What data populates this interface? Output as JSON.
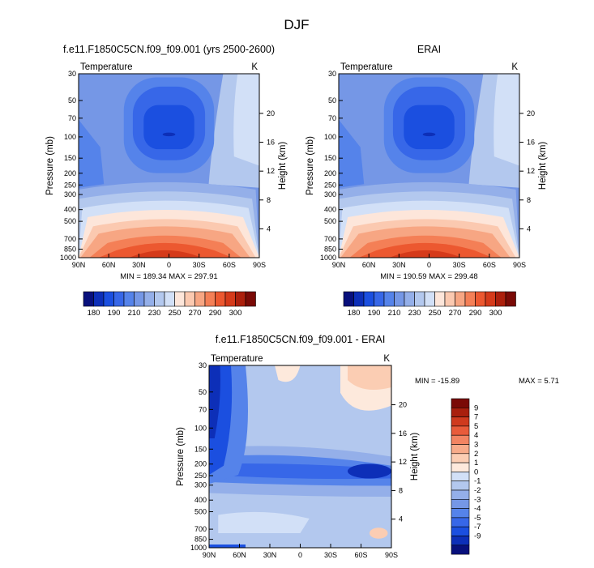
{
  "figure_title": "DJF",
  "colors": {
    "upper_palette": [
      "#08107c",
      "#0d2fb8",
      "#1b4fe0",
      "#3767e8",
      "#5583ea",
      "#7597e6",
      "#94afe9",
      "#b3c8ee",
      "#d2e0f7",
      "#fde6da",
      "#fbc9b0",
      "#f7a683",
      "#f47f56",
      "#ec5830",
      "#d53a1a",
      "#ac1f0c",
      "#7a0a06"
    ],
    "diff_palette": [
      "#08107c",
      "#0d2fb8",
      "#1b4fe0",
      "#3767e8",
      "#5583ea",
      "#7597e6",
      "#94afe9",
      "#b3c8ee",
      "#d2e0f7",
      "#fde9dc",
      "#fbcdb3",
      "#f7ab8a",
      "#f28462",
      "#e85b3a",
      "#cf3a1e",
      "#a91f0d",
      "#7a0a06"
    ]
  },
  "chart_data": [
    {
      "type": "contour",
      "title": "f.e11.F1850C5CN.f09_f09.001 (yrs 2500-2600)",
      "left_label": "Temperature",
      "right_label": "K",
      "xlabel": "",
      "ylabel": "Pressure (mb)",
      "ylabel_right": "Height (km)",
      "x_ticks": [
        "90N",
        "60N",
        "30N",
        "0",
        "30S",
        "60S",
        "90S"
      ],
      "y_ticks": [
        "30",
        "50",
        "70",
        "100",
        "150",
        "200",
        "250",
        "300",
        "400",
        "500",
        "700",
        "850",
        "1000"
      ],
      "y_values": [
        30,
        50,
        70,
        100,
        150,
        200,
        250,
        300,
        400,
        500,
        700,
        850,
        1000
      ],
      "height_ticks": [
        "4",
        "8",
        "12",
        "16",
        "20"
      ],
      "height_values": [
        4,
        8,
        12,
        16,
        20
      ],
      "min_max": "MIN = 189.34   MAX = 297.91",
      "colorbar_labels": [
        "180",
        "190",
        "210",
        "230",
        "250",
        "270",
        "290",
        "300"
      ],
      "ylim": [
        1000,
        30
      ]
    },
    {
      "type": "contour",
      "title": "ERAI",
      "left_label": "Temperature",
      "right_label": "K",
      "xlabel": "",
      "ylabel": "Pressure (mb)",
      "ylabel_right": "Height (km)",
      "x_ticks": [
        "90N",
        "60N",
        "30N",
        "0",
        "30S",
        "60S",
        "90S"
      ],
      "y_ticks": [
        "30",
        "50",
        "70",
        "100",
        "150",
        "200",
        "250",
        "300",
        "400",
        "500",
        "700",
        "850",
        "1000"
      ],
      "y_values": [
        30,
        50,
        70,
        100,
        150,
        200,
        250,
        300,
        400,
        500,
        700,
        850,
        1000
      ],
      "height_ticks": [
        "4",
        "8",
        "12",
        "16",
        "20"
      ],
      "height_values": [
        4,
        8,
        12,
        16,
        20
      ],
      "min_max": "MIN = 190.59   MAX = 299.48",
      "colorbar_labels": [
        "180",
        "190",
        "210",
        "230",
        "250",
        "270",
        "290",
        "300"
      ],
      "ylim": [
        1000,
        30
      ]
    },
    {
      "type": "contour",
      "title": "f.e11.F1850C5CN.f09_f09.001 - ERAI",
      "left_label": "Temperature",
      "right_label": "K",
      "xlabel": "",
      "ylabel": "Pressure (mb)",
      "ylabel_right": "Height (km)",
      "x_ticks": [
        "90N",
        "60N",
        "30N",
        "0",
        "30S",
        "60S",
        "90S"
      ],
      "y_ticks": [
        "30",
        "50",
        "70",
        "100",
        "150",
        "200",
        "250",
        "300",
        "400",
        "500",
        "700",
        "850",
        "1000"
      ],
      "y_values": [
        30,
        50,
        70,
        100,
        150,
        200,
        250,
        300,
        400,
        500,
        700,
        850,
        1000
      ],
      "height_ticks": [
        "4",
        "8",
        "12",
        "16",
        "20"
      ],
      "height_values": [
        4,
        8,
        12,
        16,
        20
      ],
      "min_label": "MIN = -15.89",
      "max_label": "MAX =   5.71",
      "colorbar_labels": [
        "9",
        "7",
        "5",
        "4",
        "3",
        "2",
        "1",
        "0",
        "-1",
        "-2",
        "-3",
        "-4",
        "-5",
        "-7",
        "-9"
      ],
      "ylim": [
        1000,
        30
      ]
    }
  ]
}
